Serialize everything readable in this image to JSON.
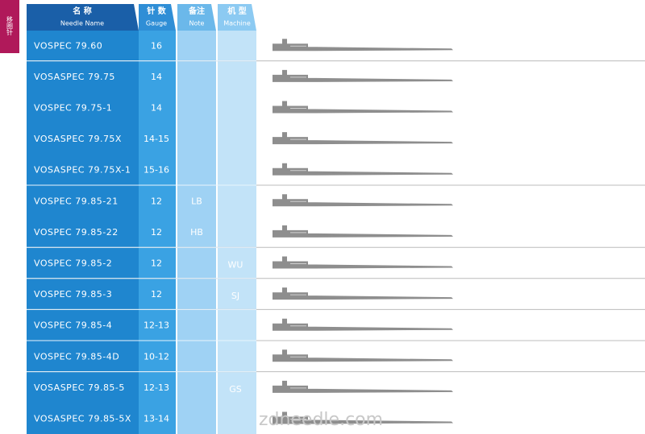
{
  "side_tab": "移圈针",
  "header": {
    "name": {
      "cn": "名  称",
      "en": "Needle  Name"
    },
    "gauge": {
      "cn": "针 数",
      "en": "Gauge"
    },
    "note": {
      "cn": "备注",
      "en": "Note"
    },
    "machine": {
      "cn": "机 型",
      "en": "Machine"
    }
  },
  "rows": [
    {
      "name": "VOSPEC 79.60",
      "gauge": "16"
    },
    {
      "name": "VOSASPEC 79.75",
      "gauge": "14"
    },
    {
      "name": "VOSPEC 79.75-1",
      "gauge": "14"
    },
    {
      "name": "VOSASPEC 79.75X",
      "gauge": "14-15"
    },
    {
      "name": "VOSASPEC 79.75X-1",
      "gauge": "15-16"
    },
    {
      "name": "VOSPEC 79.85-21",
      "gauge": "12",
      "note": "LB"
    },
    {
      "name": "VOSPEC 79.85-22",
      "gauge": "12",
      "note": "HB"
    },
    {
      "name": "VOSPEC 79.85-2",
      "gauge": "12",
      "machine": "WU"
    },
    {
      "name": "VOSPEC 79.85-3",
      "gauge": "12",
      "machine": "SJ"
    },
    {
      "name": "VOSPEC 79.85-4",
      "gauge": "12-13"
    },
    {
      "name": "VOSPEC 79.85-4D",
      "gauge": "10-12"
    },
    {
      "name": "VOSASPEC 79.85-5",
      "gauge": "12-13",
      "machine": "GS"
    },
    {
      "name": "VOSASPEC 79.85-5X",
      "gauge": "13-14"
    }
  ],
  "watermark": "zdneedle.com"
}
